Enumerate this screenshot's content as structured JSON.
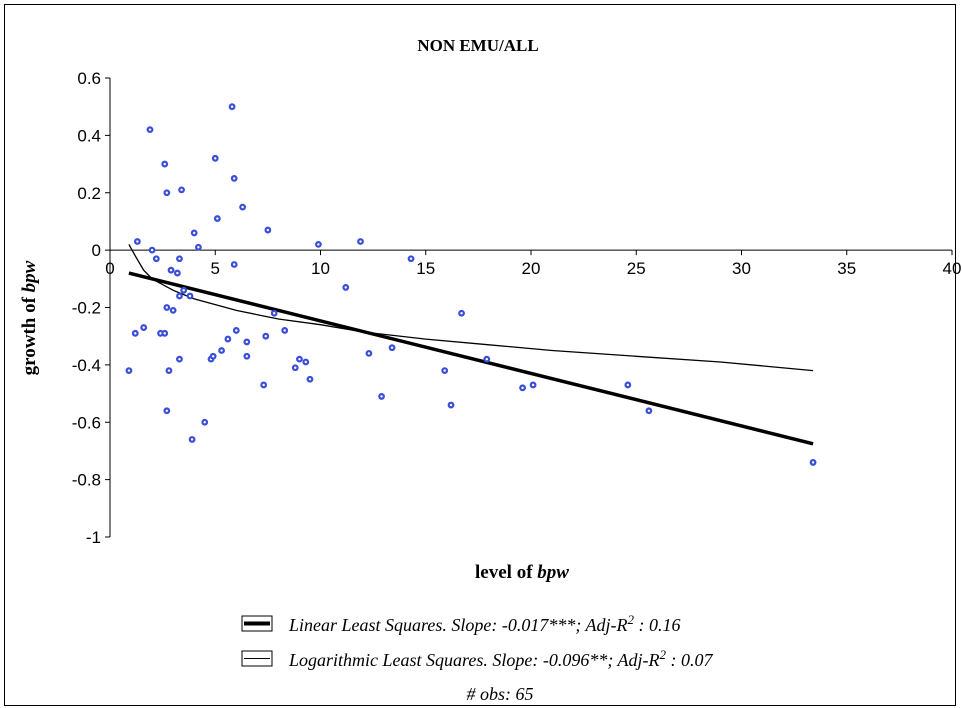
{
  "chart_data": {
    "type": "scatter",
    "title": "NON EMU/ALL",
    "xlabel": "level of",
    "xlabel_var": "bpw",
    "ylabel": "growth of",
    "ylabel_var": "bpw",
    "xlim": [
      0,
      40
    ],
    "ylim": [
      -1,
      0.6
    ],
    "xticks": [
      "0",
      "5",
      "10",
      "15",
      "20",
      "25",
      "30",
      "35",
      "40"
    ],
    "yticks": [
      "0.6",
      "0.4",
      "0.2",
      "0",
      "-0.2",
      "-0.4",
      "-0.6",
      "-0.8",
      "-1"
    ],
    "grid": false,
    "colors": {
      "points": "#3b4fd6",
      "lines": "#000000"
    },
    "points": [
      [
        0.9,
        -0.42
      ],
      [
        1.3,
        0.03
      ],
      [
        1.2,
        -0.29
      ],
      [
        1.6,
        -0.27
      ],
      [
        1.9,
        0.42
      ],
      [
        2.0,
        0.0
      ],
      [
        2.2,
        -0.03
      ],
      [
        2.4,
        -0.29
      ],
      [
        2.6,
        0.3
      ],
      [
        2.6,
        -0.29
      ],
      [
        2.7,
        0.2
      ],
      [
        2.7,
        -0.2
      ],
      [
        2.7,
        -0.56
      ],
      [
        2.8,
        -0.42
      ],
      [
        2.9,
        -0.07
      ],
      [
        3.0,
        -0.21
      ],
      [
        3.2,
        -0.08
      ],
      [
        3.3,
        -0.03
      ],
      [
        3.3,
        -0.16
      ],
      [
        3.3,
        -0.38
      ],
      [
        3.4,
        0.21
      ],
      [
        3.5,
        -0.14
      ],
      [
        3.8,
        -0.16
      ],
      [
        3.9,
        -0.66
      ],
      [
        4.0,
        0.06
      ],
      [
        4.2,
        0.01
      ],
      [
        4.5,
        -0.6
      ],
      [
        4.8,
        -0.38
      ],
      [
        4.9,
        -0.37
      ],
      [
        5.0,
        0.32
      ],
      [
        5.1,
        0.11
      ],
      [
        5.3,
        -0.35
      ],
      [
        5.6,
        -0.31
      ],
      [
        5.8,
        0.5
      ],
      [
        5.9,
        0.25
      ],
      [
        5.9,
        -0.05
      ],
      [
        6.0,
        -0.28
      ],
      [
        6.3,
        0.15
      ],
      [
        6.5,
        -0.37
      ],
      [
        6.5,
        -0.32
      ],
      [
        7.3,
        -0.47
      ],
      [
        7.4,
        -0.3
      ],
      [
        7.5,
        0.07
      ],
      [
        7.8,
        -0.22
      ],
      [
        8.8,
        -0.41
      ],
      [
        9.0,
        -0.38
      ],
      [
        9.3,
        -0.39
      ],
      [
        9.5,
        -0.45
      ],
      [
        9.9,
        0.02
      ],
      [
        11.2,
        -0.13
      ],
      [
        11.9,
        0.03
      ],
      [
        12.3,
        -0.36
      ],
      [
        12.9,
        -0.51
      ],
      [
        13.4,
        -0.34
      ],
      [
        14.3,
        -0.03
      ],
      [
        15.9,
        -0.42
      ],
      [
        16.2,
        -0.54
      ],
      [
        16.7,
        -0.22
      ],
      [
        17.9,
        -0.38
      ],
      [
        19.6,
        -0.48
      ],
      [
        20.1,
        -0.47
      ],
      [
        24.6,
        -0.47
      ],
      [
        25.6,
        -0.56
      ],
      [
        33.4,
        -0.74
      ],
      [
        8.3,
        -0.28
      ]
    ],
    "series": [
      {
        "name": "Linear Least Squares. Slope: -0.017***; Adj-R² : 0.16",
        "type": "linear",
        "x": [
          0.9,
          33.4
        ],
        "y": [
          -0.08,
          -0.675
        ]
      },
      {
        "name": "Logarithmic Least Squares. Slope: -0.096**; Adj-R² : 0.07",
        "type": "logarithmic",
        "x": [
          0.9,
          1.2,
          1.6,
          2,
          2.5,
          3,
          3.5,
          4,
          5,
          6,
          7,
          8,
          10,
          12,
          15,
          18,
          21,
          25,
          29,
          33.4
        ],
        "y": [
          0.02,
          -0.02,
          -0.07,
          -0.1,
          -0.12,
          -0.14,
          -0.155,
          -0.17,
          -0.19,
          -0.21,
          -0.225,
          -0.24,
          -0.26,
          -0.285,
          -0.31,
          -0.33,
          -0.35,
          -0.37,
          -0.39,
          -0.42
        ]
      }
    ],
    "legend": {
      "placement": "bottom-center",
      "line1_text": "Linear Least Squares. Slope: -0.017***; Adj-R",
      "line1_sup": "2",
      "line1_tail": " : 0.16",
      "line2_text": "Logarithmic Least Squares. Slope: -0.096**; Adj-R",
      "line2_sup": "2",
      "line2_tail": " : 0.07",
      "obs": "# obs: 65"
    }
  }
}
